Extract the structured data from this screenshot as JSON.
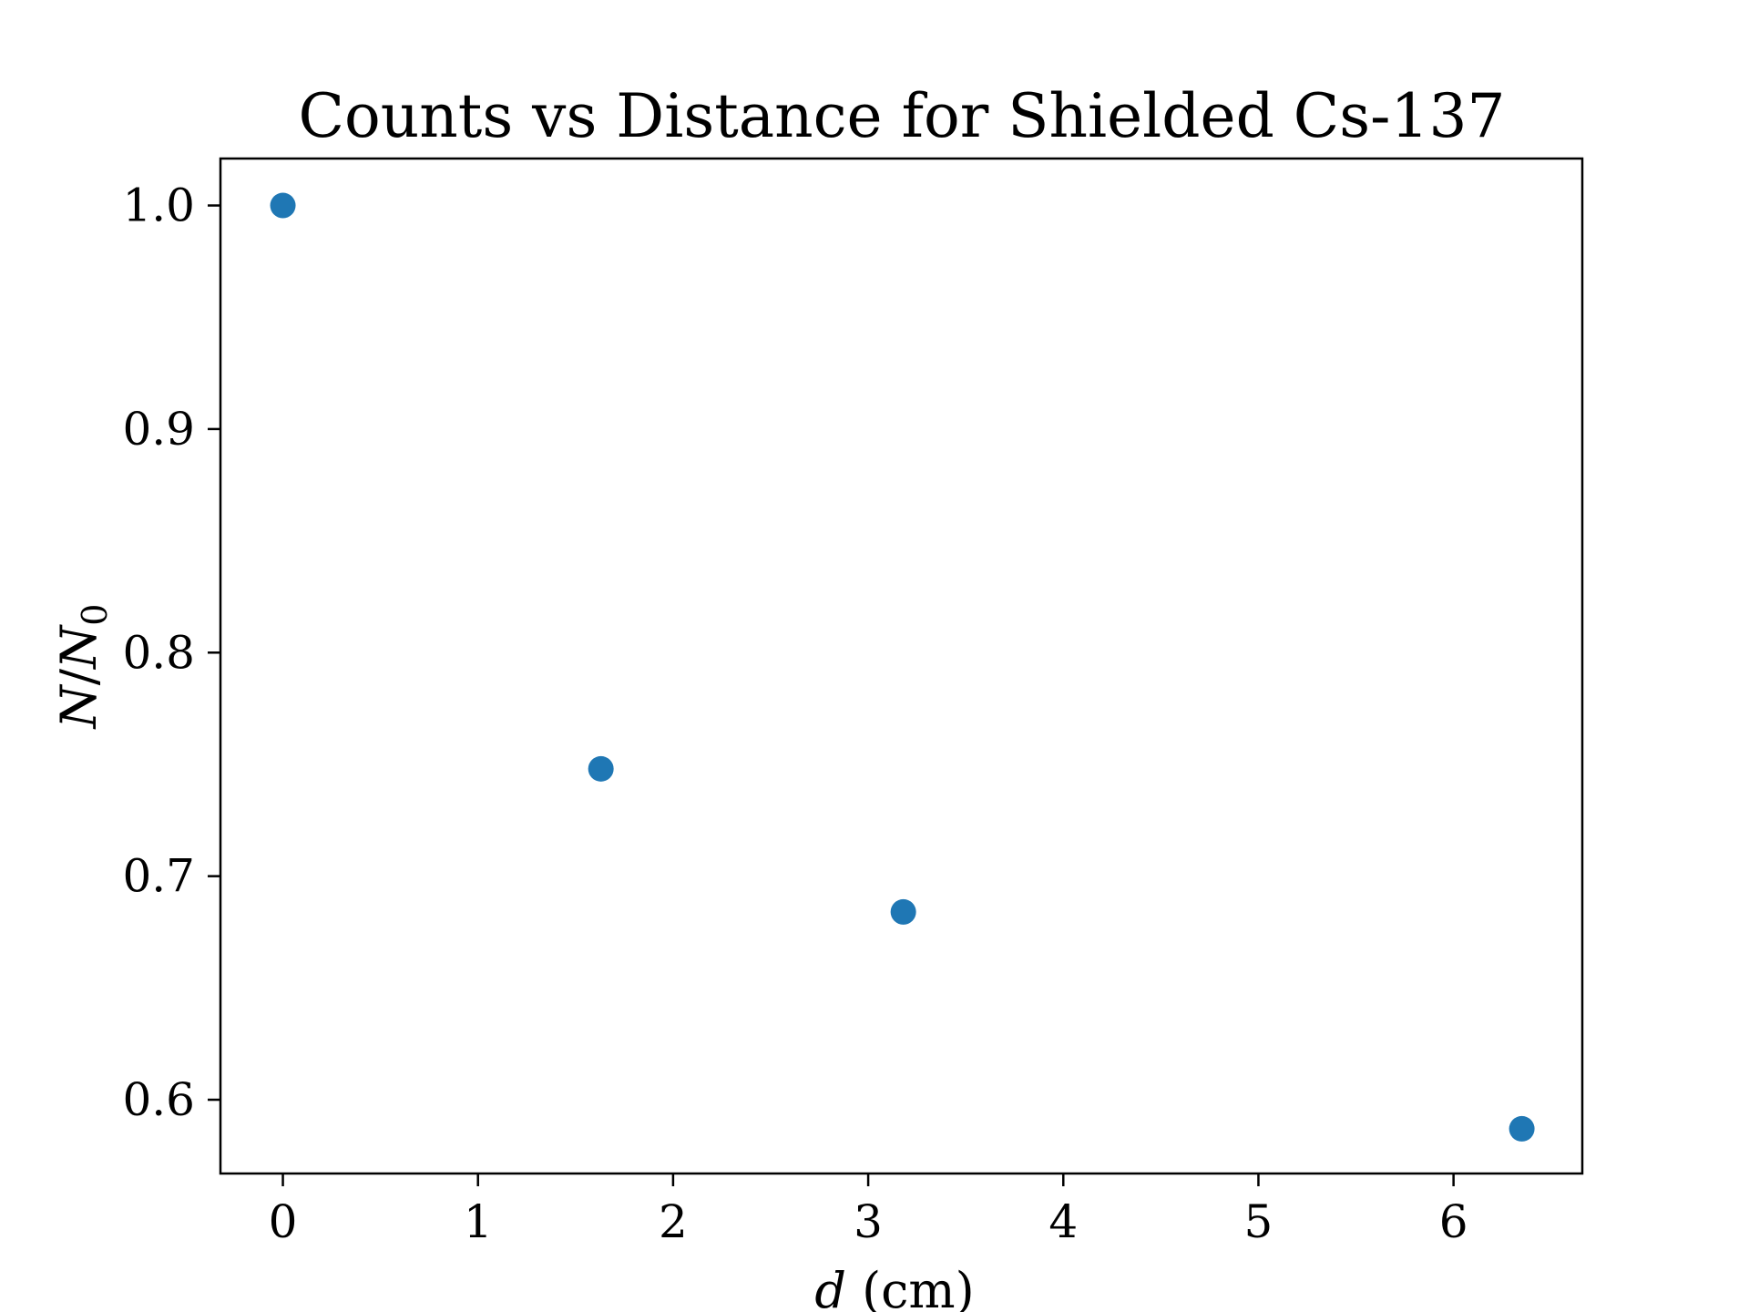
{
  "chart_data": {
    "type": "scatter",
    "title": "Counts vs Distance for Shielded Cs-137",
    "xlabel": "d (cm)",
    "ylabel": "N/N0",
    "xlim": [
      -0.32,
      6.66
    ],
    "ylim": [
      0.567,
      1.021
    ],
    "xticks": [
      0,
      1,
      2,
      3,
      4,
      5,
      6
    ],
    "yticks": [
      0.6,
      0.7,
      0.8,
      0.9,
      1.0
    ],
    "xtick_labels": [
      "0",
      "1",
      "2",
      "3",
      "4",
      "5",
      "6"
    ],
    "ytick_labels": [
      "0.6",
      "0.7",
      "0.8",
      "0.9",
      "1.0"
    ],
    "grid": false,
    "legend": "none",
    "color": "#1f77b4",
    "series": [
      {
        "x": [
          0,
          1.63,
          3.18,
          6.35
        ],
        "y": [
          1.0,
          0.748,
          0.684,
          0.587
        ]
      }
    ]
  }
}
